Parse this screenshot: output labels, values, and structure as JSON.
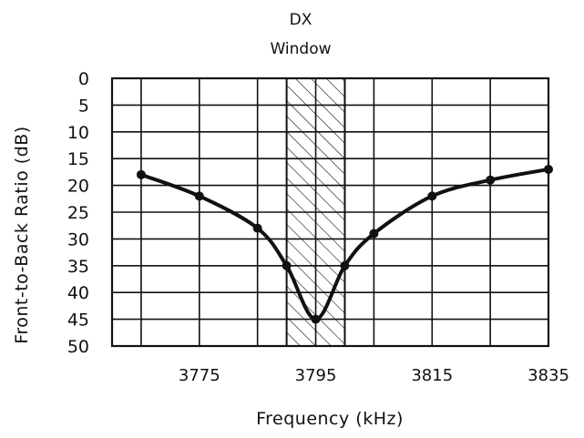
{
  "chart_data": {
    "type": "line",
    "xlabel": "Frequency (kHz)",
    "ylabel": "Front-to-Back Ratio (dB)",
    "annotation": {
      "line1": "DX",
      "line2": "Window"
    },
    "x_ticks": [
      "3775",
      "3795",
      "3815",
      "3835"
    ],
    "y_ticks": [
      "0",
      "5",
      "10",
      "15",
      "20",
      "25",
      "30",
      "35",
      "40",
      "45",
      "50"
    ],
    "xlim": [
      3760,
      3835
    ],
    "ylim": [
      0,
      50
    ],
    "y_inverted": true,
    "shaded_band": {
      "x_start": 3790,
      "x_end": 3800
    },
    "grid": true,
    "series": [
      {
        "x": [
          3765,
          3775,
          3785,
          3790,
          3795,
          3800,
          3805,
          3815,
          3825,
          3835
        ],
        "y": [
          18,
          22,
          28,
          35,
          45,
          35,
          29,
          22,
          19,
          17
        ]
      }
    ],
    "line_color": "#111111"
  }
}
